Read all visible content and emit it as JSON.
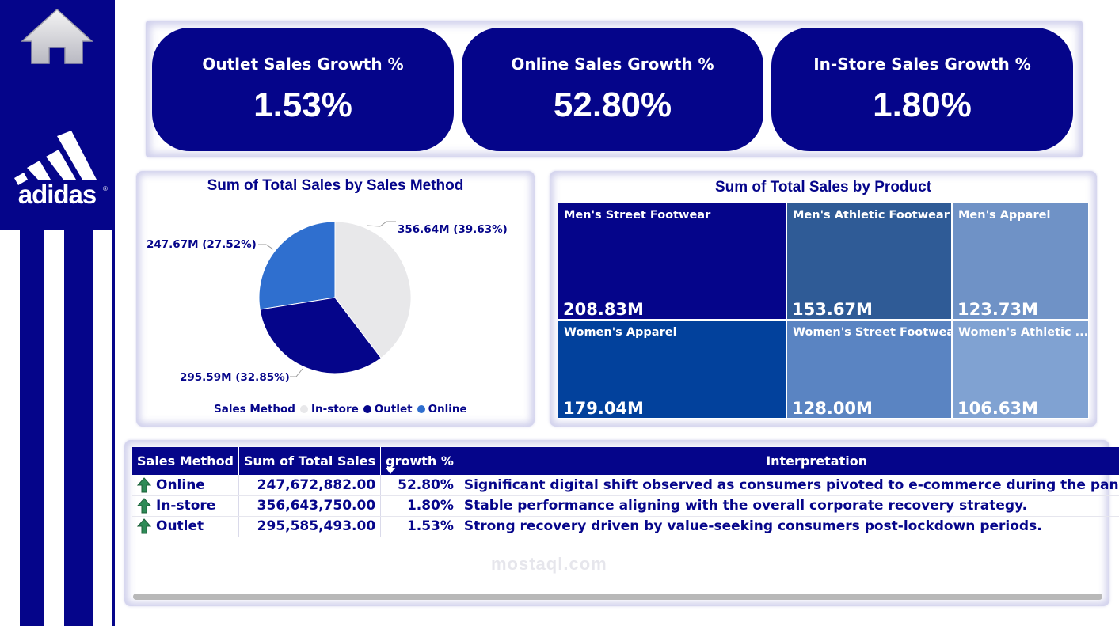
{
  "colors": {
    "navy": "#05058a",
    "white": "#ffffff"
  },
  "sidebar": {
    "home_icon": "home-icon",
    "logo_text": "adidas"
  },
  "kpis": [
    {
      "title": "Outlet Sales Growth %",
      "value": "1.53%"
    },
    {
      "title": "Online Sales Growth %",
      "value": "52.80%"
    },
    {
      "title": "In-Store Sales Growth %",
      "value": "1.80%"
    }
  ],
  "pie": {
    "title": "Sum of Total Sales by Sales Method",
    "legend_title": "Sales Method",
    "labels": {
      "instore": "356.64M (39.63%)",
      "online": "247.67M (27.52%)",
      "outlet": "295.59M (32.85%)"
    }
  },
  "treemap": {
    "title": "Sum of Total Sales by Product",
    "tiles": [
      {
        "label": "Men's Street Footwear",
        "value": "208.83M"
      },
      {
        "label": "Women's Apparel",
        "value": "179.04M"
      },
      {
        "label": "Men's Athletic Footwear",
        "value": "153.67M"
      },
      {
        "label": "Women's Street Footwear",
        "value": "128.00M"
      },
      {
        "label": "Men's Apparel",
        "value": "123.73M"
      },
      {
        "label": "Women's Athletic ...",
        "value": "106.63M"
      }
    ]
  },
  "chart_data": [
    {
      "type": "pie",
      "title": "Sum of Total Sales by Sales Method",
      "legend_title": "Sales Method",
      "categories": [
        "In-store",
        "Outlet",
        "Online"
      ],
      "values": [
        356.64,
        295.59,
        247.67
      ],
      "percentages": [
        39.63,
        32.85,
        27.52
      ],
      "colors": [
        "#e8e8ea",
        "#05058a",
        "#2f6fcf"
      ],
      "legend_position": "bottom"
    },
    {
      "type": "treemap",
      "title": "Sum of Total Sales by Product",
      "categories": [
        "Men's Street Footwear",
        "Women's Apparel",
        "Men's Athletic Footwear",
        "Women's Street Footwear",
        "Men's Apparel",
        "Women's Athletic ..."
      ],
      "values": [
        208.83,
        179.04,
        153.67,
        128.0,
        123.73,
        106.63
      ],
      "colors": [
        "#05058a",
        "#02419c",
        "#2f5b96",
        "#5a84c2",
        "#6f92c6",
        "#80a2d2"
      ]
    }
  ],
  "table": {
    "headers": [
      "Sales Method",
      "Sum of Total Sales",
      "growth %",
      "Interpretation"
    ],
    "sort_icon": "sort-descending-icon",
    "rows": [
      {
        "method": "Online",
        "total": "247,672,882.00",
        "growth": "52.80%",
        "interpretation": "Significant digital shift observed as consumers pivoted to e-commerce during the pandemic.",
        "icon": "arrow-up-icon"
      },
      {
        "method": "In-store",
        "total": "356,643,750.00",
        "growth": "1.80%",
        "interpretation": "Stable performance aligning with the overall corporate recovery strategy.",
        "icon": "arrow-up-icon"
      },
      {
        "method": "Outlet",
        "total": "295,585,493.00",
        "growth": "1.53%",
        "interpretation": "Strong recovery driven by value-seeking consumers post-lockdown periods.",
        "icon": "arrow-up-icon"
      }
    ]
  },
  "watermark": "mostaql.com"
}
